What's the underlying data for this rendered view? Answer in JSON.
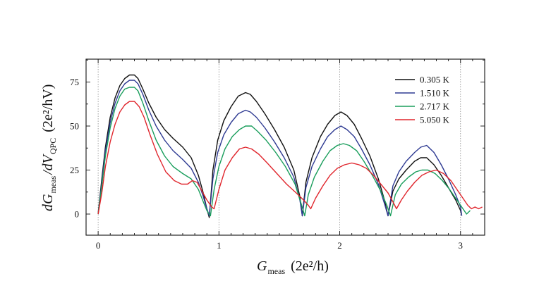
{
  "chart_data": {
    "type": "line",
    "title": "",
    "xlabel": {
      "main": "G",
      "sub": "meas",
      "units": "(2e²/h)"
    },
    "ylabel": {
      "main": "dG",
      "sub1": "meas",
      "mid": "/dV",
      "sub2": "QPC",
      "units": "(2e²/hV)"
    },
    "xlim": [
      -0.1,
      3.2
    ],
    "ylim": [
      -12,
      88
    ],
    "xticks": [
      0,
      1,
      2,
      3
    ],
    "xtick_labels": [
      "0",
      "1",
      "2",
      "3"
    ],
    "yticks": [
      0,
      25,
      50,
      75
    ],
    "ytick_labels": [
      "0",
      "25",
      "50",
      "75"
    ],
    "vertical_gridlines_at": [
      0,
      1,
      2,
      3
    ],
    "legend_position": "top-right",
    "series": [
      {
        "name": "0.305 K",
        "color": "#111111",
        "x": [
          0.0,
          0.03,
          0.06,
          0.1,
          0.14,
          0.18,
          0.22,
          0.26,
          0.3,
          0.33,
          0.37,
          0.42,
          0.48,
          0.55,
          0.62,
          0.7,
          0.77,
          0.83,
          0.87,
          0.9,
          0.92,
          0.92,
          0.95,
          0.99,
          1.04,
          1.1,
          1.16,
          1.22,
          1.26,
          1.31,
          1.38,
          1.46,
          1.54,
          1.62,
          1.67,
          1.69,
          1.69,
          1.72,
          1.77,
          1.84,
          1.9,
          1.96,
          2.01,
          2.06,
          2.12,
          2.18,
          2.25,
          2.32,
          2.37,
          2.4,
          2.4,
          2.44,
          2.49,
          2.55,
          2.62,
          2.67,
          2.72,
          2.78,
          2.84,
          2.9,
          2.96,
          3.0,
          3.01
        ],
        "y": [
          0,
          20,
          38,
          55,
          66,
          73,
          77,
          79,
          79,
          77,
          71,
          63,
          55,
          48,
          43,
          38,
          32,
          22,
          12,
          3,
          -2,
          -2,
          25,
          42,
          53,
          61,
          67,
          69,
          68,
          64,
          57,
          48,
          38,
          25,
          10,
          -1,
          -1,
          18,
          32,
          44,
          51,
          56,
          58,
          56,
          51,
          43,
          33,
          20,
          8,
          -1,
          -1,
          13,
          20,
          25,
          30,
          32,
          32,
          28,
          22,
          15,
          8,
          2,
          -1
        ]
      },
      {
        "name": "1.510 K",
        "color": "#2e3a92",
        "x": [
          0.0,
          0.03,
          0.06,
          0.1,
          0.14,
          0.18,
          0.22,
          0.26,
          0.3,
          0.33,
          0.37,
          0.42,
          0.48,
          0.55,
          0.62,
          0.7,
          0.77,
          0.83,
          0.87,
          0.9,
          0.92,
          0.92,
          0.95,
          0.99,
          1.04,
          1.1,
          1.16,
          1.22,
          1.26,
          1.31,
          1.38,
          1.46,
          1.54,
          1.62,
          1.67,
          1.69,
          1.69,
          1.72,
          1.77,
          1.84,
          1.9,
          1.96,
          2.01,
          2.06,
          2.12,
          2.18,
          2.25,
          2.32,
          2.37,
          2.4,
          2.4,
          2.44,
          2.49,
          2.55,
          2.62,
          2.67,
          2.72,
          2.78,
          2.84,
          2.9,
          2.96,
          3.0,
          3.01
        ],
        "y": [
          0,
          18,
          36,
          52,
          63,
          70,
          74,
          76,
          76,
          74,
          68,
          59,
          50,
          42,
          36,
          31,
          26,
          18,
          10,
          3,
          -1,
          -1,
          20,
          35,
          45,
          52,
          57,
          59,
          58,
          55,
          49,
          41,
          32,
          21,
          8,
          -1,
          -1,
          15,
          27,
          37,
          44,
          48,
          50,
          48,
          44,
          37,
          28,
          17,
          6,
          -1,
          -1,
          16,
          24,
          30,
          35,
          38,
          39,
          35,
          28,
          20,
          11,
          4,
          -1
        ]
      },
      {
        "name": "2.717 K",
        "color": "#1a9e5c",
        "x": [
          0.0,
          0.03,
          0.06,
          0.1,
          0.14,
          0.18,
          0.22,
          0.26,
          0.3,
          0.33,
          0.37,
          0.42,
          0.48,
          0.55,
          0.62,
          0.7,
          0.77,
          0.83,
          0.87,
          0.9,
          0.93,
          0.93,
          0.96,
          1.0,
          1.05,
          1.11,
          1.17,
          1.22,
          1.27,
          1.32,
          1.39,
          1.47,
          1.55,
          1.63,
          1.68,
          1.71,
          1.71,
          1.74,
          1.79,
          1.86,
          1.92,
          1.98,
          2.03,
          2.08,
          2.14,
          2.2,
          2.27,
          2.34,
          2.39,
          2.42,
          2.42,
          2.46,
          2.51,
          2.57,
          2.63,
          2.68,
          2.73,
          2.79,
          2.85,
          2.91,
          2.97,
          3.02,
          3.05,
          3.08
        ],
        "y": [
          0,
          16,
          33,
          49,
          60,
          67,
          71,
          72,
          72,
          70,
          63,
          53,
          42,
          33,
          27,
          23,
          20,
          14,
          7,
          2,
          -1,
          -1,
          14,
          27,
          37,
          44,
          48,
          50,
          50,
          47,
          42,
          35,
          27,
          17,
          6,
          -1,
          -1,
          11,
          21,
          30,
          36,
          39,
          40,
          39,
          36,
          30,
          22,
          13,
          5,
          -1,
          -1,
          11,
          17,
          21,
          24,
          25,
          25,
          23,
          19,
          14,
          8,
          3,
          0,
          2
        ]
      },
      {
        "name": "5.050 K",
        "color": "#e0262d",
        "x": [
          0.0,
          0.03,
          0.06,
          0.1,
          0.14,
          0.18,
          0.22,
          0.26,
          0.3,
          0.34,
          0.38,
          0.43,
          0.49,
          0.56,
          0.63,
          0.69,
          0.74,
          0.78,
          0.82,
          0.86,
          0.9,
          0.94,
          0.96,
          0.96,
          1.0,
          1.05,
          1.11,
          1.17,
          1.22,
          1.27,
          1.33,
          1.4,
          1.48,
          1.56,
          1.64,
          1.7,
          1.74,
          1.76,
          1.76,
          1.8,
          1.86,
          1.92,
          1.98,
          2.04,
          2.1,
          2.16,
          2.22,
          2.28,
          2.34,
          2.4,
          2.44,
          2.47,
          2.47,
          2.51,
          2.56,
          2.62,
          2.68,
          2.74,
          2.8,
          2.86,
          2.92,
          2.97,
          3.02,
          3.06,
          3.09,
          3.12,
          3.15,
          3.18
        ],
        "y": [
          0,
          12,
          27,
          41,
          51,
          58,
          62,
          64,
          64,
          61,
          55,
          45,
          34,
          24,
          19,
          17,
          17,
          19,
          18,
          13,
          8,
          4,
          3,
          3,
          14,
          25,
          32,
          37,
          38,
          37,
          34,
          29,
          23,
          17,
          12,
          8,
          5,
          3,
          3,
          9,
          16,
          22,
          26,
          28,
          29,
          28,
          26,
          22,
          17,
          12,
          7,
          3,
          3,
          8,
          13,
          18,
          22,
          24,
          25,
          23,
          19,
          14,
          9,
          5,
          3,
          4,
          3,
          4
        ]
      }
    ]
  }
}
